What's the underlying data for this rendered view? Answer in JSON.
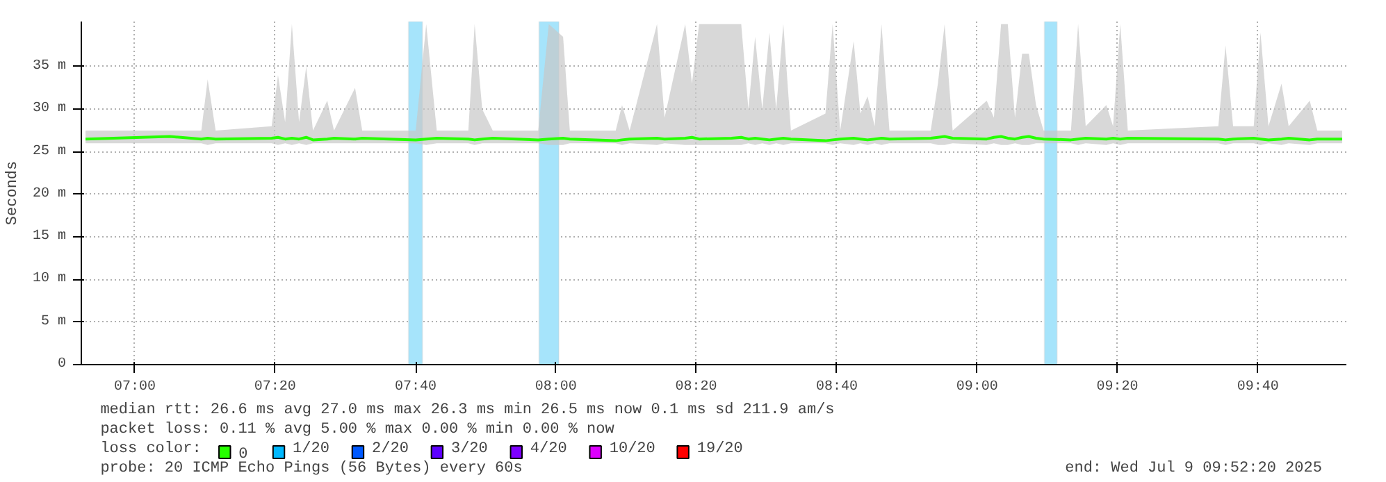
{
  "chart_data": {
    "type": "line",
    "ylabel": "Seconds",
    "legend_title": "loss color:",
    "legend": "bottom",
    "grid": true,
    "xlim": [
      6.873,
      9.877
    ],
    "xticks": [
      {
        "value": 7.0,
        "label": "07:00"
      },
      {
        "value": 7.333,
        "label": "07:20"
      },
      {
        "value": 7.667,
        "label": "07:40"
      },
      {
        "value": 8.0,
        "label": "08:00"
      },
      {
        "value": 8.333,
        "label": "08:20"
      },
      {
        "value": 8.667,
        "label": "08:40"
      },
      {
        "value": 9.0,
        "label": "09:00"
      },
      {
        "value": 9.333,
        "label": "09:20"
      },
      {
        "value": 9.667,
        "label": "09:40"
      }
    ],
    "ylim": [
      0,
      40.3
    ],
    "yticks": [
      0,
      {
        "value": 5,
        "label": "5 m"
      },
      {
        "value": 10,
        "label": "10 m"
      },
      {
        "value": 15,
        "label": "15 m"
      },
      {
        "value": 20,
        "label": "20 m"
      },
      {
        "value": 25,
        "label": "25 m"
      },
      {
        "value": 30,
        "label": "30 m"
      },
      {
        "value": 35,
        "label": "35 m"
      }
    ],
    "x": [
      6.883,
      7.083,
      7.158,
      7.173,
      7.192,
      7.325,
      7.34,
      7.357,
      7.373,
      7.39,
      7.407,
      7.423,
      7.457,
      7.473,
      7.523,
      7.54,
      7.667,
      7.692,
      7.717,
      7.792,
      7.807,
      7.825,
      7.85,
      7.958,
      7.983,
      8.017,
      8.033,
      8.142,
      8.157,
      8.175,
      8.24,
      8.258,
      8.307,
      8.323,
      8.34,
      8.417,
      8.44,
      8.457,
      8.473,
      8.49,
      8.507,
      8.523,
      8.54,
      8.558,
      8.64,
      8.657,
      8.675,
      8.707,
      8.723,
      8.74,
      8.757,
      8.773,
      8.792,
      8.89,
      8.907,
      8.923,
      8.942,
      9.023,
      9.04,
      9.057,
      9.073,
      9.09,
      9.107,
      9.123,
      9.14,
      9.158,
      9.223,
      9.24,
      9.258,
      9.307,
      9.323,
      9.34,
      9.358,
      9.573,
      9.59,
      9.608,
      9.657,
      9.673,
      9.692,
      9.723,
      9.74,
      9.79,
      9.808,
      9.867
    ],
    "series": [
      {
        "name": "0",
        "color": "#26ff00",
        "values": [
          26.5,
          26.8,
          26.5,
          26.6,
          26.5,
          26.6,
          26.7,
          26.5,
          26.6,
          26.5,
          26.7,
          26.4,
          26.5,
          26.6,
          26.5,
          26.6,
          26.4,
          26.5,
          26.6,
          26.5,
          26.4,
          26.5,
          26.6,
          26.4,
          26.5,
          26.6,
          26.5,
          26.3,
          26.4,
          26.5,
          26.6,
          26.5,
          26.6,
          26.7,
          26.5,
          26.6,
          26.7,
          26.5,
          26.6,
          26.5,
          26.4,
          26.5,
          26.6,
          26.5,
          26.3,
          26.4,
          26.5,
          26.6,
          26.5,
          26.4,
          26.5,
          26.6,
          26.5,
          26.6,
          26.7,
          26.8,
          26.6,
          26.5,
          26.7,
          26.8,
          26.6,
          26.5,
          26.7,
          26.8,
          26.6,
          26.5,
          26.4,
          26.5,
          26.6,
          26.5,
          26.6,
          26.5,
          26.6,
          26.5,
          26.4,
          26.5,
          26.6,
          26.5,
          26.4,
          26.5,
          26.6,
          26.4,
          26.5,
          26.5
        ],
        "lower": [
          26,
          26,
          26,
          25.8,
          26,
          26,
          25.8,
          26,
          25.8,
          26,
          25.8,
          26,
          26,
          26,
          26,
          26,
          26,
          25.8,
          26,
          26,
          25.8,
          26,
          26,
          26,
          25.8,
          25.8,
          26,
          26,
          25.8,
          26,
          25.8,
          26,
          25.8,
          25.8,
          25.8,
          25.8,
          25.8,
          26,
          25.8,
          26,
          25.8,
          26,
          25.8,
          26,
          26,
          25.8,
          26,
          25.8,
          26,
          25.8,
          26,
          25.8,
          26,
          26,
          25.8,
          25.8,
          26,
          25.8,
          26,
          25.8,
          25.8,
          26,
          25.8,
          25.8,
          26,
          26,
          26,
          25.8,
          26,
          25.8,
          26,
          25.8,
          26,
          26,
          25.8,
          26,
          26,
          25.8,
          26,
          25.8,
          26,
          25.8,
          26,
          26
        ],
        "upper": [
          27.5,
          27.5,
          27.5,
          33.5,
          27.5,
          28,
          34,
          28.5,
          40,
          28.5,
          35,
          27.5,
          31,
          27.5,
          32.5,
          27.5,
          27.5,
          40,
          27.5,
          27.5,
          40,
          30,
          27.5,
          27.5,
          40,
          38.5,
          27.5,
          27.5,
          30.5,
          27.5,
          40,
          29,
          40,
          33,
          40,
          40,
          40,
          30,
          38.5,
          30,
          39,
          30,
          40,
          27.5,
          29.5,
          40,
          27.5,
          38,
          29.5,
          31.5,
          28,
          40,
          27.5,
          27.5,
          33,
          40,
          27.5,
          31,
          29,
          40,
          40,
          29,
          36.5,
          36.5,
          30.5,
          27.5,
          27.5,
          40,
          28,
          30.5,
          28,
          40,
          27.5,
          28,
          37.5,
          28,
          28,
          39,
          28,
          33,
          28,
          31,
          27.5,
          27.5
        ]
      },
      {
        "name": "1/20",
        "color": "#00b8ff",
        "values": [
          null,
          null,
          null,
          null,
          null,
          null,
          null,
          null,
          null,
          null,
          null,
          null,
          null,
          null,
          null,
          null,
          null,
          null,
          null,
          null,
          null,
          null,
          null,
          null,
          null,
          null,
          null,
          null,
          null,
          null,
          null,
          null,
          null,
          null,
          null,
          null,
          null,
          null,
          null,
          null,
          null,
          null,
          null,
          null,
          null,
          null,
          null,
          null,
          null,
          null,
          null,
          null,
          null,
          null,
          null,
          null,
          null,
          null,
          null,
          null,
          null,
          null,
          null,
          null,
          null,
          null,
          null,
          null,
          null,
          null,
          null,
          null,
          null,
          null,
          null,
          null,
          null,
          null,
          null,
          null,
          null,
          null,
          null,
          null
        ]
      },
      {
        "name": "2/20",
        "color": "#0059ff",
        "values": [
          null,
          null,
          null,
          null,
          null,
          null,
          null,
          null,
          null,
          null,
          null,
          null,
          null,
          null,
          null,
          null,
          null,
          null,
          null,
          null,
          null,
          null,
          null,
          null,
          null,
          null,
          null,
          null,
          null,
          null,
          null,
          null,
          null,
          null,
          null,
          null,
          null,
          null,
          null,
          null,
          null,
          null,
          null,
          null,
          null,
          null,
          null,
          null,
          null,
          null,
          null,
          null,
          null,
          null,
          null,
          null,
          null,
          null,
          null,
          null,
          null,
          null,
          null,
          null,
          null,
          null,
          null,
          null,
          null,
          null,
          null,
          null,
          null,
          null,
          null,
          null,
          null,
          null,
          null,
          null,
          null,
          null,
          null,
          null
        ]
      },
      {
        "name": "3/20",
        "color": "#5e00ff",
        "values": [
          null,
          null,
          null,
          null,
          null,
          null,
          null,
          null,
          null,
          null,
          null,
          null,
          null,
          null,
          null,
          null,
          null,
          null,
          null,
          null,
          null,
          null,
          null,
          null,
          null,
          null,
          null,
          null,
          null,
          null,
          null,
          null,
          null,
          null,
          null,
          null,
          null,
          null,
          null,
          null,
          null,
          null,
          null,
          null,
          null,
          null,
          null,
          null,
          null,
          null,
          null,
          null,
          null,
          null,
          null,
          null,
          null,
          null,
          null,
          null,
          null,
          null,
          null,
          null,
          null,
          null,
          null,
          null,
          null,
          null,
          null,
          null,
          null,
          null,
          null,
          null,
          null,
          null,
          null,
          null,
          null,
          null,
          null,
          null
        ]
      },
      {
        "name": "4/20",
        "color": "#7e00ff",
        "values": [
          null,
          null,
          null,
          null,
          null,
          null,
          null,
          null,
          null,
          null,
          null,
          null,
          null,
          null,
          null,
          null,
          null,
          null,
          null,
          null,
          null,
          null,
          null,
          null,
          null,
          null,
          null,
          null,
          null,
          null,
          null,
          null,
          null,
          null,
          null,
          null,
          null,
          null,
          null,
          null,
          null,
          null,
          null,
          null,
          null,
          null,
          null,
          null,
          null,
          null,
          null,
          null,
          null,
          null,
          null,
          null,
          null,
          null,
          null,
          null,
          null,
          null,
          null,
          null,
          null,
          null,
          null,
          null,
          null,
          null,
          null,
          null,
          null,
          null,
          null,
          null,
          null,
          null,
          null,
          null,
          null,
          null,
          null,
          null
        ]
      },
      {
        "name": "10/20",
        "color": "#dd00ff",
        "values": [
          null,
          null,
          null,
          null,
          null,
          null,
          null,
          null,
          null,
          null,
          null,
          null,
          null,
          null,
          null,
          null,
          null,
          null,
          null,
          null,
          null,
          null,
          null,
          null,
          null,
          null,
          null,
          null,
          null,
          null,
          null,
          null,
          null,
          null,
          null,
          null,
          null,
          null,
          null,
          null,
          null,
          null,
          null,
          null,
          null,
          null,
          null,
          null,
          null,
          null,
          null,
          null,
          null,
          null,
          null,
          null,
          null,
          null,
          null,
          null,
          null,
          null,
          null,
          null,
          null,
          null,
          null,
          null,
          null,
          null,
          null,
          null,
          null,
          null,
          null,
          null,
          null,
          null,
          null,
          null,
          null,
          null,
          null,
          null
        ]
      },
      {
        "name": "19/20",
        "color": "#ff0000",
        "values": [
          null,
          null,
          null,
          null,
          null,
          null,
          null,
          null,
          null,
          null,
          null,
          null,
          null,
          null,
          null,
          null,
          null,
          null,
          null,
          null,
          null,
          null,
          null,
          null,
          null,
          null,
          null,
          null,
          null,
          null,
          null,
          null,
          null,
          null,
          null,
          null,
          null,
          null,
          null,
          null,
          null,
          null,
          null,
          null,
          null,
          null,
          null,
          null,
          null,
          null,
          null,
          null,
          null,
          null,
          null,
          null,
          null,
          null,
          null,
          null,
          null,
          null,
          null,
          null,
          null,
          null,
          null,
          null,
          null,
          null,
          null,
          null,
          null,
          null,
          null,
          null,
          null,
          null,
          null,
          null,
          null,
          null,
          null,
          null
        ]
      }
    ],
    "bands": [
      {
        "axis": "x",
        "from": 7.65,
        "to": 7.683,
        "color": "#a6e4fb"
      },
      {
        "axis": "x",
        "from": 7.96,
        "to": 8.007,
        "color": "#a6e4fb"
      },
      {
        "axis": "x",
        "from": 9.16,
        "to": 9.19,
        "color": "#a6e4fb"
      }
    ],
    "annotations": [
      "median rtt:  26.6 ms avg  27.0 ms max  26.3 ms min  26.5 ms now  0.1 ms sd  211.9    am/s",
      "packet loss: 0.11 % avg  5.00 % max  0.00 % min  0.00 % now",
      "probe:       20 ICMP Echo Pings (56 Bytes) every 60s",
      "end: Wed Jul  9 09:52:20 2025"
    ]
  }
}
